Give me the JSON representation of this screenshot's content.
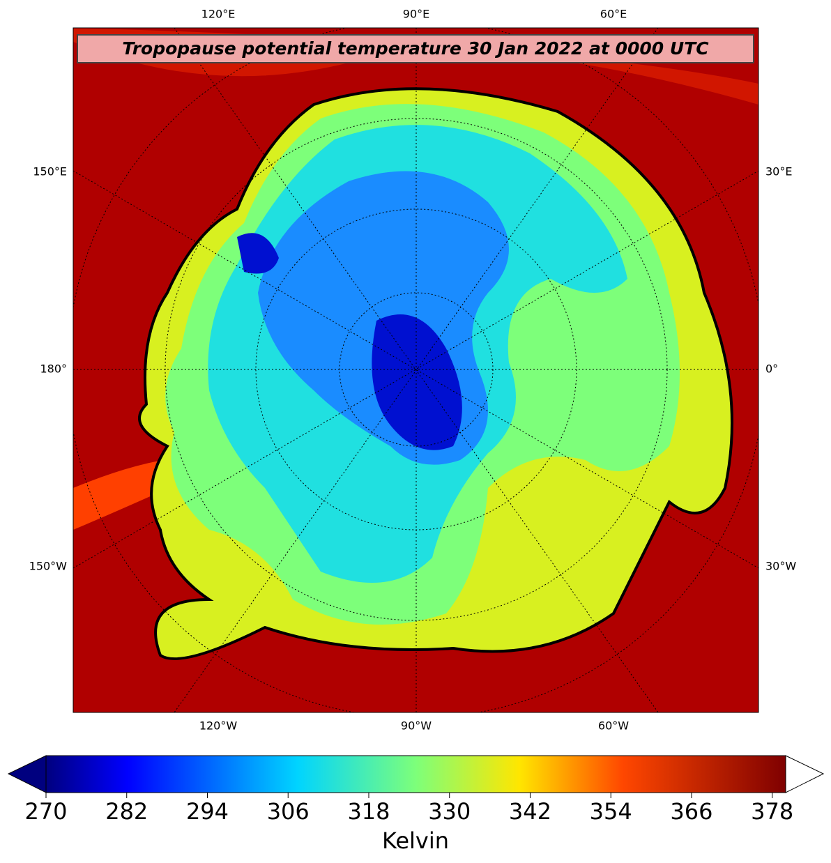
{
  "map": {
    "title": "Tropopause potential temperature 30 Jan 2022 at 0000 UTC",
    "labels_top": [
      "120°E",
      "90°E",
      "60°E"
    ],
    "labels_bottom": [
      "120°W",
      "90°W",
      "60°W"
    ],
    "labels_left": [
      "150°E",
      "180°",
      "150°W"
    ],
    "labels_right": [
      "30°E",
      "0°",
      "30°W"
    ]
  },
  "colorbar": {
    "label": "Kelvin",
    "lim": [
      270,
      380
    ],
    "ticks": [
      270,
      282,
      294,
      306,
      318,
      330,
      342,
      354,
      366,
      378
    ]
  }
}
